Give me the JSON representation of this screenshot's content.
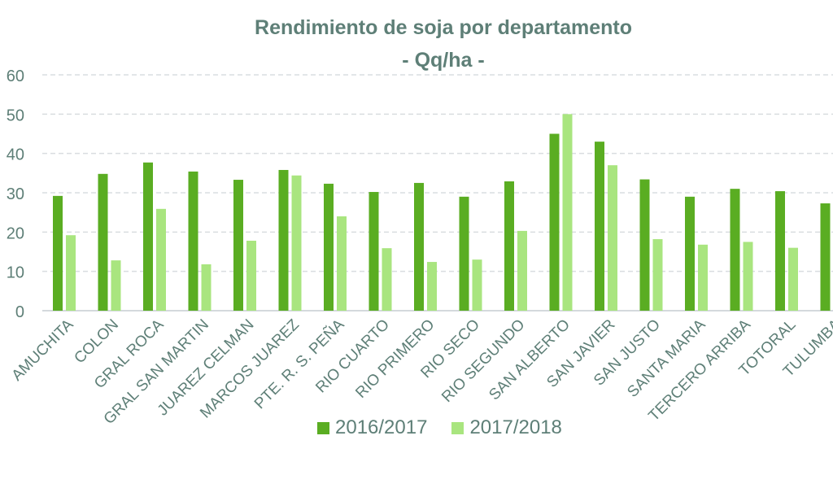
{
  "chart_data": {
    "type": "bar",
    "title": "Rendimiento de soja por departamento",
    "subtitle": "- Qq/ha -",
    "xlabel": "",
    "ylabel": "",
    "ylim": [
      0,
      60
    ],
    "yticks": [
      0,
      10,
      20,
      30,
      40,
      50,
      60
    ],
    "grid": true,
    "legend_position": "bottom",
    "categories": [
      "CALAMUCHITA",
      "COLON",
      "GRAL ROCA",
      "GRAL SAN MARTIN",
      "JUAREZ CELMAN",
      "MARCOS JUAREZ",
      "PTE. R. S. PEÑA",
      "RIO CUARTO",
      "RIO PRIMERO",
      "RIO SECO",
      "RIO SEGUNDO",
      "SAN ALBERTO",
      "SAN JAVIER",
      "SAN JUSTO",
      "SANTA MARIA",
      "TERCERO ARRIBA",
      "TOTORAL",
      "TULUMBA"
    ],
    "category_labels_visible": [
      "AMUCHITA",
      "COLON",
      "GRAL ROCA",
      "GRAL SAN MARTIN",
      "JUAREZ CELMAN",
      "MARCOS JUAREZ",
      "PTE. R. S. PEÑA",
      "RIO CUARTO",
      "RIO PRIMERO",
      "RIO SECO",
      "RIO SEGUNDO",
      "SAN ALBERTO",
      "SAN JAVIER",
      "SAN JUSTO",
      "SANTA MARIA",
      "TERCERO ARRIBA",
      "TOTORAL",
      "TULUMBA"
    ],
    "series": [
      {
        "name": "2016/2017",
        "color": "#5aad22",
        "values": [
          29.2,
          34.8,
          37.7,
          35.4,
          33.3,
          35.8,
          32.3,
          30.2,
          32.5,
          29.0,
          32.9,
          45.0,
          43.0,
          33.4,
          29.0,
          31.0,
          30.4,
          27.3
        ]
      },
      {
        "name": "2017/2018",
        "color": "#a9e57f",
        "values": [
          19.2,
          12.8,
          25.9,
          11.8,
          17.8,
          34.4,
          24.0,
          15.9,
          12.4,
          13.0,
          20.3,
          50.0,
          37.0,
          18.2,
          16.8,
          17.5,
          16.0,
          null
        ]
      }
    ]
  },
  "colors": {
    "title": "#5e7f77",
    "axis_text": "#5e7f77",
    "grid": "#d9dde0",
    "axis_line": "#d4d9dd"
  }
}
